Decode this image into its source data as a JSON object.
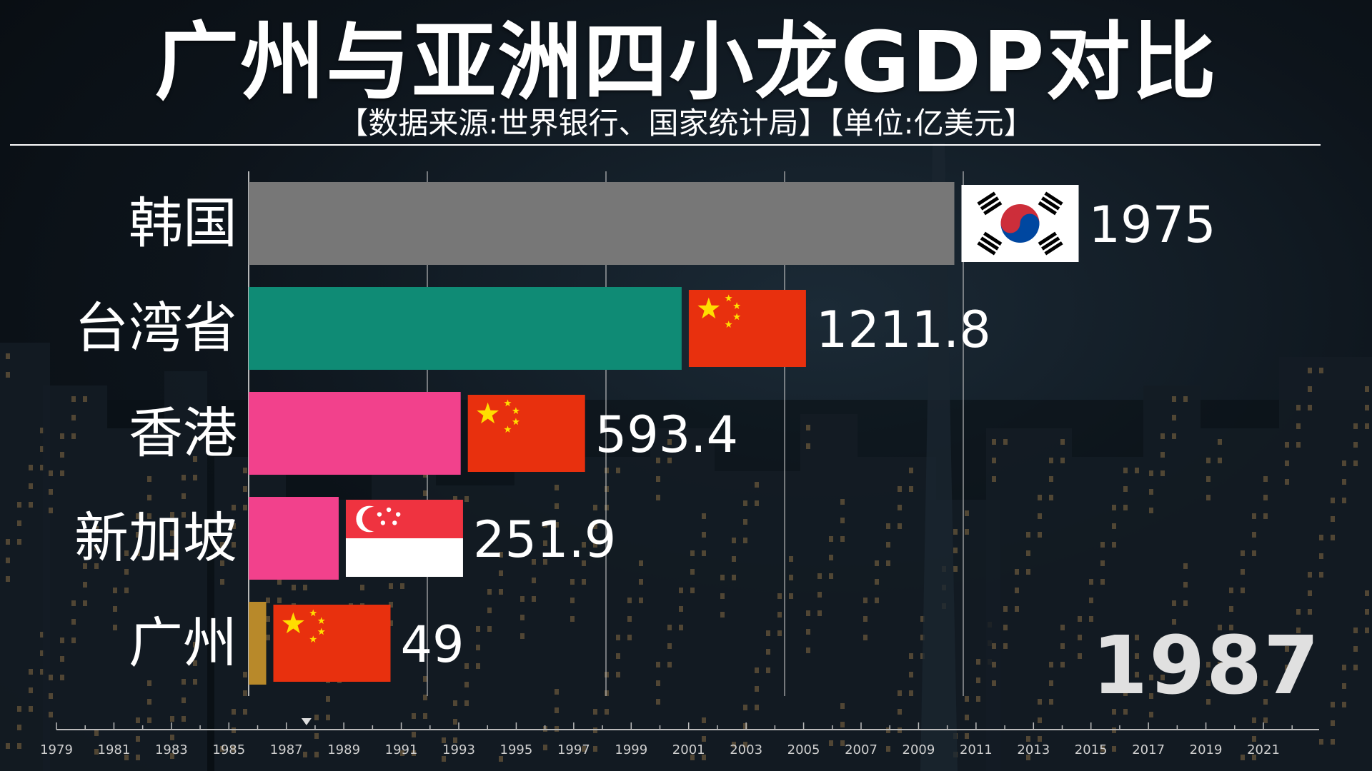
{
  "header": {
    "title": "广州与亚洲四小龙GDP对比",
    "subtitle": "【数据来源:世界银行、国家统计局】【单位:亿美元】"
  },
  "current_year": "1987",
  "colors": {
    "korea": "#777777",
    "taiwan": "#0f8b75",
    "hongkong": "#f2418c",
    "singapore": "#f2418c",
    "guangzhou": "#b8892a",
    "gridline": "#c8c8c8",
    "timeline": "#bbbbbb"
  },
  "chart_data": {
    "type": "bar",
    "orientation": "horizontal",
    "title": "广州与亚洲四小龙GDP对比",
    "subtitle": "【数据来源:世界银行、国家统计局】【单位:亿美元】",
    "categories": [
      "韩国",
      "台湾省",
      "香港",
      "新加坡",
      "广州"
    ],
    "values": [
      1975,
      1211.8,
      593.4,
      251.9,
      49
    ],
    "value_labels": [
      "1975",
      "1211.8",
      "593.4",
      "251.9",
      "49"
    ],
    "flags": [
      "south-korea-flag",
      "china-flag",
      "china-flag",
      "singapore-flag",
      "china-flag"
    ],
    "xlim": [
      0,
      2500
    ],
    "grid": true,
    "timeline": {
      "ticks": [
        "1979",
        "1981",
        "1983",
        "1985",
        "1987",
        "1989",
        "1991",
        "1993",
        "1995",
        "1997",
        "1999",
        "2001",
        "2003",
        "2005",
        "2007",
        "2009",
        "2011",
        "2013",
        "2015",
        "2017",
        "2019",
        "2021"
      ],
      "current": 1987.7
    }
  }
}
